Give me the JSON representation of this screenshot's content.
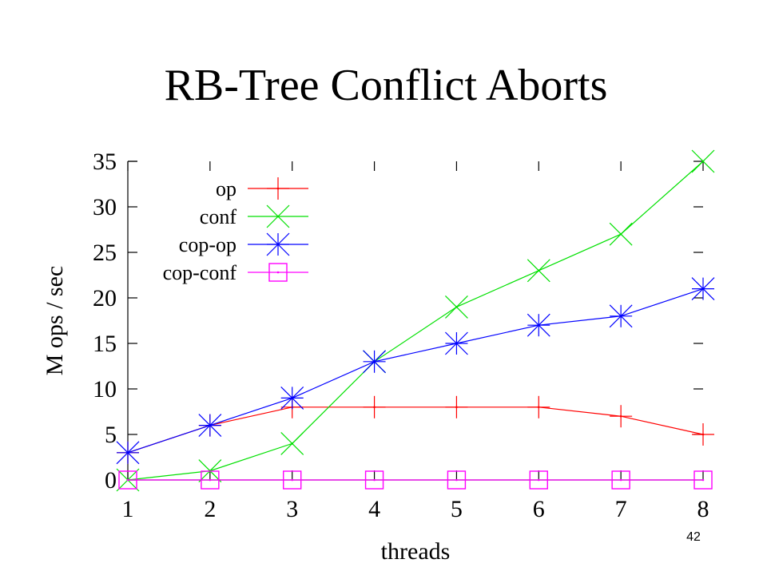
{
  "slide": {
    "title": "RB-Tree Conflict Aborts",
    "page_number": "42"
  },
  "chart_data": {
    "type": "line",
    "title": "",
    "xlabel": "threads",
    "ylabel": "M ops / sec",
    "x": [
      1,
      2,
      3,
      4,
      5,
      6,
      7,
      8
    ],
    "x_ticks": [
      "1",
      "2",
      "3",
      "4",
      "5",
      "6",
      "7",
      "8"
    ],
    "y_ticks": [
      "0",
      "5",
      "10",
      "15",
      "20",
      "25",
      "30",
      "35"
    ],
    "xlim": [
      1,
      8
    ],
    "ylim": [
      0,
      35
    ],
    "grid": false,
    "legend_position": "top-left",
    "series": [
      {
        "name": "op",
        "color": "#ff0000",
        "marker": "plus",
        "values": [
          3,
          6,
          8,
          8,
          8,
          8,
          7,
          5
        ]
      },
      {
        "name": "conf",
        "color": "#00e000",
        "marker": "cross",
        "values": [
          0,
          1,
          4,
          13,
          19,
          23,
          27,
          35
        ]
      },
      {
        "name": "cop-op",
        "color": "#0000ff",
        "marker": "asterisk",
        "values": [
          3,
          6,
          9,
          13,
          15,
          17,
          18,
          21
        ]
      },
      {
        "name": "cop-conf",
        "color": "#ff00ff",
        "marker": "square",
        "values": [
          0,
          0,
          0,
          0,
          0,
          0,
          0,
          0
        ]
      }
    ]
  }
}
